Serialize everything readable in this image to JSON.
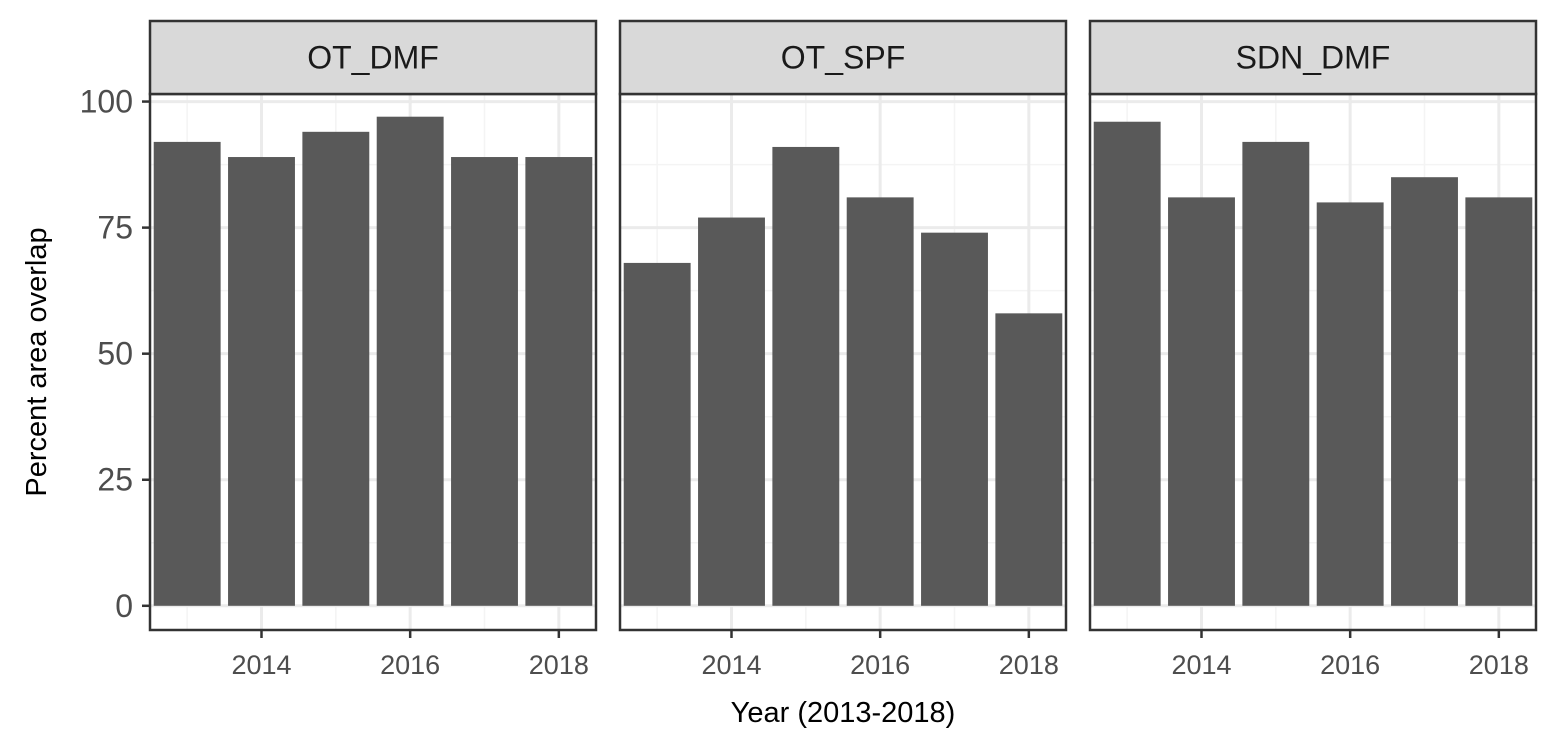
{
  "chart_data": {
    "type": "bar",
    "facets": [
      "OT_DMF",
      "OT_SPF",
      "SDN_DMF"
    ],
    "categories": [
      2013,
      2014,
      2015,
      2016,
      2017,
      2018
    ],
    "series": [
      {
        "facet": "OT_DMF",
        "values": [
          92,
          89,
          94,
          97,
          89,
          89
        ]
      },
      {
        "facet": "OT_SPF",
        "values": [
          68,
          77,
          91,
          81,
          74,
          58
        ]
      },
      {
        "facet": "SDN_DMF",
        "values": [
          96,
          81,
          92,
          80,
          85,
          81
        ]
      }
    ],
    "xlabel": "Year (2013-2018)",
    "ylabel": "Percent area overlap",
    "ylim": [
      -4.8,
      101.5
    ],
    "xlim": [
      2012.5,
      2018.5
    ],
    "yticks": [
      0,
      25,
      50,
      75,
      100
    ],
    "xticks": [
      2014,
      2016,
      2018
    ],
    "colors": {
      "bar": "#595959",
      "strip": "#d9d9d9",
      "grid_major": "#ebebeb",
      "grid_minor": "#f4f4f4",
      "border": "#333333"
    },
    "grid": true,
    "legend": "none"
  }
}
